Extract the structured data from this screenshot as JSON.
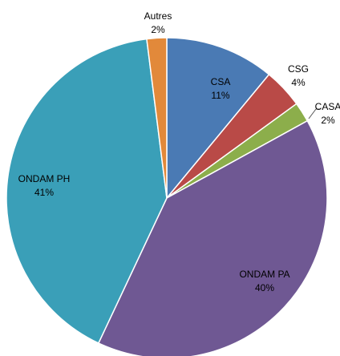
{
  "chart_data": {
    "type": "pie",
    "categories": [
      "CSA",
      "CSG",
      "CASA",
      "ONDAM PA",
      "ONDAM PH",
      "Autres"
    ],
    "values": [
      11,
      4,
      2,
      40,
      41,
      2
    ],
    "value_labels": [
      "11%",
      "4%",
      "2%",
      "40%",
      "41%",
      "2%"
    ],
    "colors": [
      "#4a7ab4",
      "#b94a47",
      "#8cae4b",
      "#6f5893",
      "#3a9fb8",
      "#e2893a"
    ]
  }
}
